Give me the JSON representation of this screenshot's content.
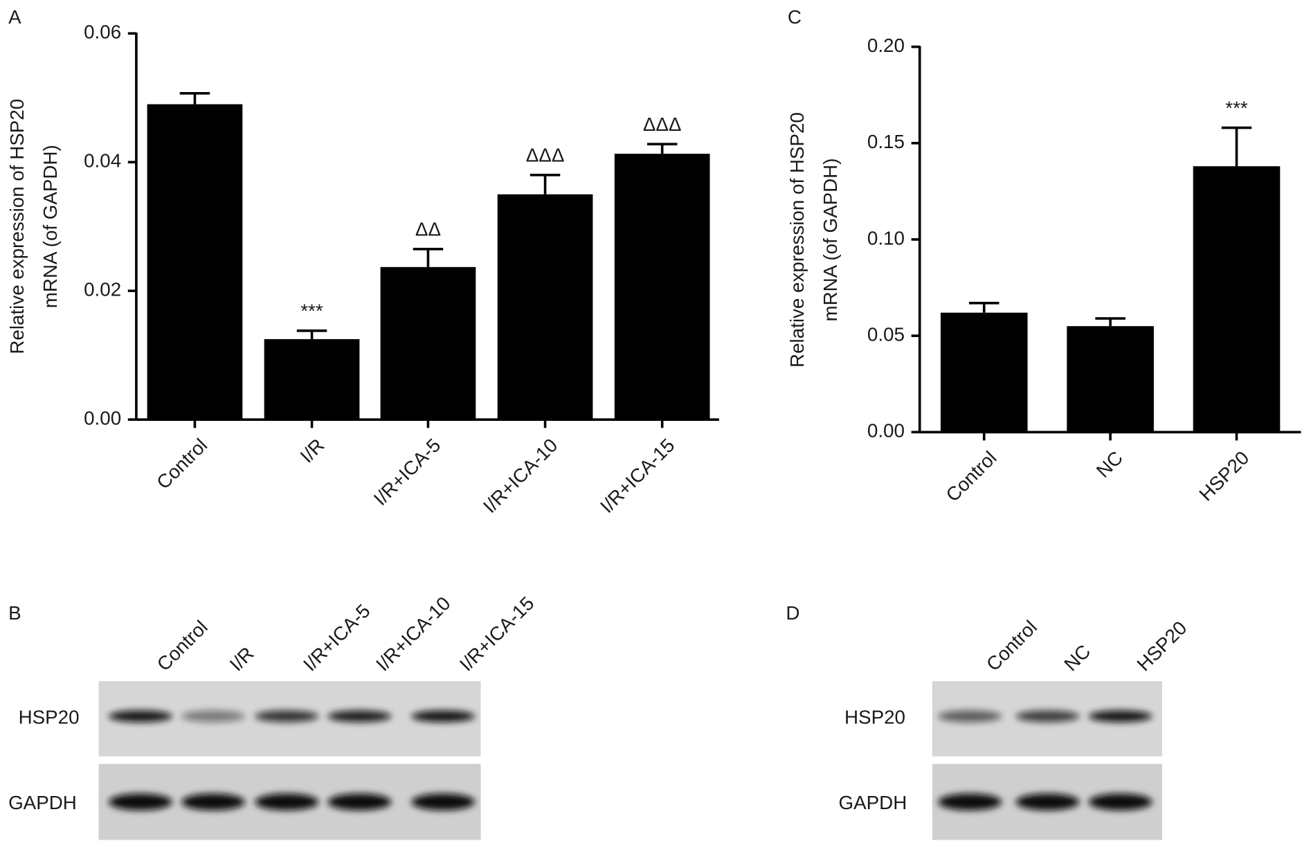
{
  "chart_data": [
    {
      "type": "bar",
      "panel": "A",
      "ylabel": [
        "Relative expression of HSP20",
        "mRNA (of GAPDH)"
      ],
      "categories": [
        "Control",
        "I/R",
        "I/R+ICA-5",
        "I/R+ICA-10",
        "I/R+ICA-15"
      ],
      "values": [
        0.049,
        0.0125,
        0.0237,
        0.035,
        0.0413
      ],
      "errors": [
        0.0017,
        0.0013,
        0.0028,
        0.003,
        0.0015
      ],
      "annotations": [
        null,
        "***",
        "ΔΔ",
        "ΔΔΔ",
        "ΔΔΔ"
      ],
      "color": "#000000",
      "ylim": [
        0,
        0.06
      ],
      "yticks": [
        {
          "value": 0,
          "label": "0.00"
        },
        {
          "value": 0.02,
          "label": "0.02"
        },
        {
          "value": 0.04,
          "label": "0.04"
        },
        {
          "value": 0.06,
          "label": "0.06"
        }
      ]
    },
    {
      "type": "bar",
      "panel": "C",
      "ylabel": [
        "Relative expression of HSP20",
        "mRNA (of GAPDH)"
      ],
      "categories": [
        "Control",
        "NC",
        "HSP20"
      ],
      "values": [
        0.062,
        0.055,
        0.138
      ],
      "errors": [
        0.005,
        0.004,
        0.02
      ],
      "annotations": [
        null,
        null,
        "***"
      ],
      "color": "#000000",
      "ylim": [
        0,
        0.2
      ],
      "yticks": [
        {
          "value": 0,
          "label": "0.00"
        },
        {
          "value": 0.05,
          "label": "0.05"
        },
        {
          "value": 0.1,
          "label": "0.10"
        },
        {
          "value": 0.15,
          "label": "0.15"
        },
        {
          "value": 0.2,
          "label": "0.20"
        }
      ]
    }
  ],
  "blots": [
    {
      "panel": "B",
      "lanes": [
        "Control",
        "I/R",
        "I/R+ICA-5",
        "I/R+ICA-10",
        "I/R+ICA-15"
      ],
      "rows": [
        "HSP20",
        "GAPDH"
      ]
    },
    {
      "panel": "D",
      "lanes": [
        "Control",
        "NC",
        "HSP20"
      ],
      "rows": [
        "HSP20",
        "GAPDH"
      ]
    }
  ]
}
